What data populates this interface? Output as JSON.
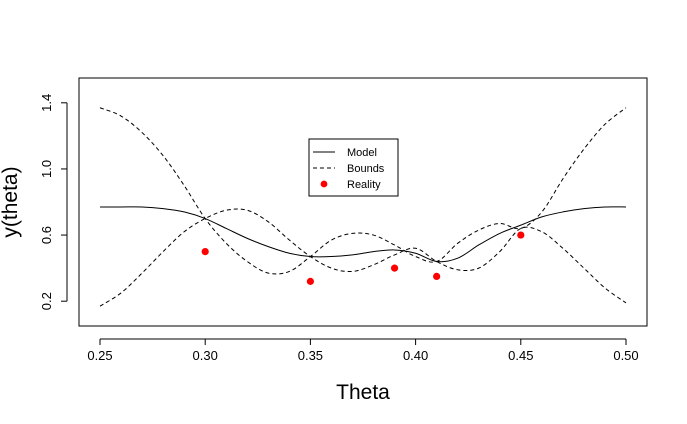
{
  "chart_data": {
    "type": "line",
    "xlabel": "Theta",
    "ylabel": "y(theta)",
    "xlim": [
      0.25,
      0.5
    ],
    "ylim": [
      0.05,
      1.55
    ],
    "x_ticks": [
      "0.25",
      "0.30",
      "0.35",
      "0.40",
      "0.45",
      "0.50"
    ],
    "y_ticks": [
      "0.2",
      "0.6",
      "1.0",
      "1.4"
    ],
    "grid": false,
    "legend_position": "top-center",
    "legend": [
      {
        "label": "Model",
        "style": "solid"
      },
      {
        "label": "Bounds",
        "style": "dashed"
      },
      {
        "label": "Reality",
        "style": "point"
      }
    ],
    "colors": {
      "line": "#000000",
      "reality": "#ff0000"
    },
    "series": [
      {
        "name": "Model",
        "style": "solid",
        "x": [
          0.25,
          0.26,
          0.27,
          0.28,
          0.29,
          0.3,
          0.31,
          0.32,
          0.33,
          0.34,
          0.35,
          0.36,
          0.37,
          0.38,
          0.39,
          0.4,
          0.41,
          0.42,
          0.43,
          0.44,
          0.45,
          0.46,
          0.47,
          0.48,
          0.49,
          0.5
        ],
        "y": [
          0.77,
          0.77,
          0.77,
          0.76,
          0.74,
          0.7,
          0.64,
          0.58,
          0.53,
          0.49,
          0.47,
          0.47,
          0.48,
          0.5,
          0.51,
          0.49,
          0.44,
          0.46,
          0.54,
          0.61,
          0.66,
          0.71,
          0.74,
          0.76,
          0.77,
          0.77
        ]
      },
      {
        "name": "Bounds",
        "style": "dashed",
        "x": [
          0.25,
          0.26,
          0.27,
          0.28,
          0.29,
          0.3,
          0.31,
          0.32,
          0.33,
          0.34,
          0.35,
          0.36,
          0.37,
          0.38,
          0.39,
          0.4,
          0.41,
          0.42,
          0.43,
          0.44,
          0.45,
          0.46,
          0.47,
          0.48,
          0.49,
          0.5
        ],
        "y": [
          1.37,
          1.32,
          1.22,
          1.08,
          0.9,
          0.7,
          0.55,
          0.44,
          0.37,
          0.38,
          0.47,
          0.57,
          0.61,
          0.6,
          0.54,
          0.47,
          0.44,
          0.55,
          0.63,
          0.67,
          0.64,
          0.74,
          0.94,
          1.12,
          1.27,
          1.37
        ]
      },
      {
        "name": "Bounds",
        "style": "dashed",
        "x": [
          0.25,
          0.26,
          0.27,
          0.28,
          0.29,
          0.3,
          0.31,
          0.32,
          0.33,
          0.34,
          0.35,
          0.36,
          0.37,
          0.38,
          0.39,
          0.4,
          0.41,
          0.42,
          0.43,
          0.44,
          0.45,
          0.46,
          0.47,
          0.48,
          0.49,
          0.5
        ],
        "y": [
          0.17,
          0.25,
          0.37,
          0.5,
          0.62,
          0.7,
          0.75,
          0.75,
          0.68,
          0.57,
          0.47,
          0.4,
          0.38,
          0.42,
          0.48,
          0.52,
          0.44,
          0.39,
          0.4,
          0.5,
          0.64,
          0.62,
          0.52,
          0.4,
          0.28,
          0.19
        ]
      },
      {
        "name": "Reality",
        "style": "point",
        "x": [
          0.3,
          0.35,
          0.39,
          0.41,
          0.45
        ],
        "y": [
          0.5,
          0.32,
          0.4,
          0.35,
          0.6
        ]
      }
    ]
  }
}
